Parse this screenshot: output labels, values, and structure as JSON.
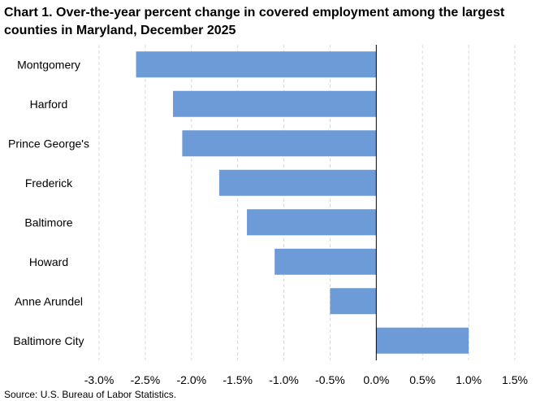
{
  "chart_data": {
    "type": "bar",
    "orientation": "horizontal",
    "title": "Chart 1. Over-the-year percent change in covered employment among the largest counties in Maryland, December 2025",
    "categories": [
      "Montgomery",
      "Harford",
      "Prince George's",
      "Frederick",
      "Baltimore",
      "Howard",
      "Anne Arundel",
      "Baltimore City"
    ],
    "values": [
      -2.6,
      -2.2,
      -2.1,
      -1.7,
      -1.4,
      -1.1,
      -0.5,
      1.0
    ],
    "xlabel": "",
    "ylabel": "",
    "xlim": [
      -3.0,
      1.5
    ],
    "x_ticks": [
      -3.0,
      -2.5,
      -2.0,
      -1.5,
      -1.0,
      -0.5,
      0.0,
      0.5,
      1.0,
      1.5
    ],
    "x_tick_labels": [
      "-3.0%",
      "-2.5%",
      "-2.0%",
      "-1.5%",
      "-1.0%",
      "-0.5%",
      "0.0%",
      "0.5%",
      "1.0%",
      "1.5%"
    ],
    "grid": "vertical dashed",
    "legend": "none",
    "bar_color": "#6d9bd8",
    "source": "Source: U.S. Bureau of Labor Statistics."
  }
}
